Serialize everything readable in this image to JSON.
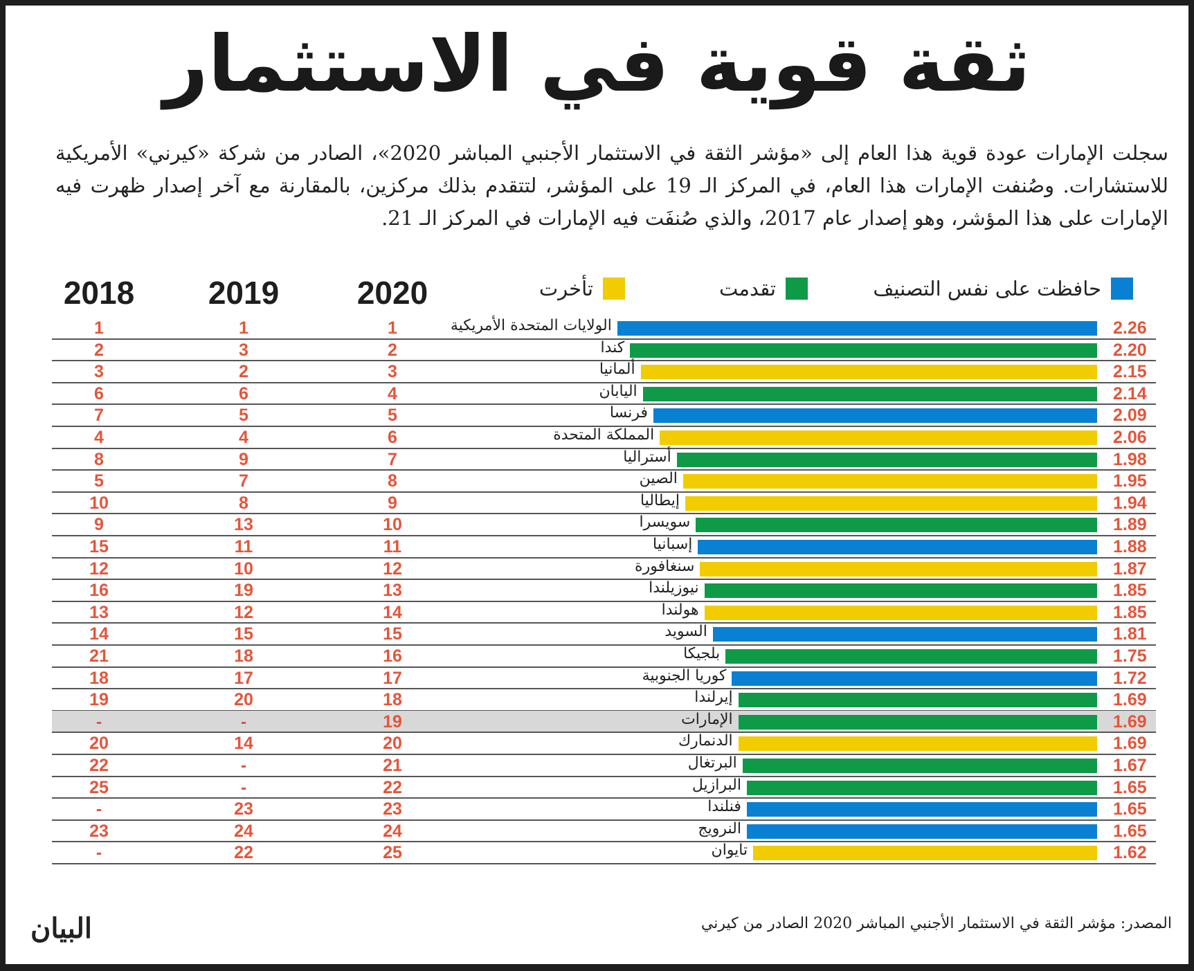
{
  "title": "ثقة قوية في الاستثمار",
  "intro": "سجلت الإمارات عودة قوية هذا العام إلى «مؤشر الثقة في الاستثمار الأجنبي المباشر 2020»، الصادر من شركة «كيرني» الأمريكية للاستشارات. وصُنفت الإمارات هذا العام، في المركز الـ 19 على المؤشر، لتتقدم بذلك مركزين، بالمقارنة مع آخر إصدار ظهرت فيه الإمارات على هذا المؤشر، وهو إصدار عام 2017، والذي صُنفَت فيه الإمارات في المركز الـ 21.",
  "source": "المصدر: مؤشر الثقة في الاستثمار الأجنبي المباشر 2020 الصادر من كيرني",
  "logo": "البيان",
  "colors": {
    "same": "#0a80d2",
    "up": "#0f9a47",
    "down": "#f1cc00",
    "rank": "#e4553a",
    "highlight": "#d8d8d8"
  },
  "chart_data": {
    "type": "bar",
    "title": "ثقة قوية في الاستثمار",
    "legend": {
      "same": "حافظت على نفس التصنيف",
      "up": "تقدمت",
      "down": "تأخرت"
    },
    "year_headers": [
      "2018",
      "2019",
      "2020"
    ],
    "rows": [
      {
        "country": "الولايات المتحدة الأمريكية",
        "value": "2.26",
        "status": "same",
        "r2020": "1",
        "r2019": "1",
        "r2018": "1"
      },
      {
        "country": "كندا",
        "value": "2.20",
        "status": "up",
        "r2020": "2",
        "r2019": "3",
        "r2018": "2"
      },
      {
        "country": "ألمانيا",
        "value": "2.15",
        "status": "down",
        "r2020": "3",
        "r2019": "2",
        "r2018": "3"
      },
      {
        "country": "اليابان",
        "value": "2.14",
        "status": "up",
        "r2020": "4",
        "r2019": "6",
        "r2018": "6"
      },
      {
        "country": "فرنسا",
        "value": "2.09",
        "status": "same",
        "r2020": "5",
        "r2019": "5",
        "r2018": "7"
      },
      {
        "country": "المملكة المتحدة",
        "value": "2.06",
        "status": "down",
        "r2020": "6",
        "r2019": "4",
        "r2018": "4"
      },
      {
        "country": "أستراليا",
        "value": "1.98",
        "status": "up",
        "r2020": "7",
        "r2019": "9",
        "r2018": "8"
      },
      {
        "country": "الصين",
        "value": "1.95",
        "status": "down",
        "r2020": "8",
        "r2019": "7",
        "r2018": "5"
      },
      {
        "country": "إيطاليا",
        "value": "1.94",
        "status": "down",
        "r2020": "9",
        "r2019": "8",
        "r2018": "10"
      },
      {
        "country": "سويسرا",
        "value": "1.89",
        "status": "up",
        "r2020": "10",
        "r2019": "13",
        "r2018": "9"
      },
      {
        "country": "إسبانيا",
        "value": "1.88",
        "status": "same",
        "r2020": "11",
        "r2019": "11",
        "r2018": "15"
      },
      {
        "country": "سنغافورة",
        "value": "1.87",
        "status": "down",
        "r2020": "12",
        "r2019": "10",
        "r2018": "12"
      },
      {
        "country": "نيوزيلندا",
        "value": "1.85",
        "status": "up",
        "r2020": "13",
        "r2019": "19",
        "r2018": "16"
      },
      {
        "country": "هولندا",
        "value": "1.85",
        "status": "down",
        "r2020": "14",
        "r2019": "12",
        "r2018": "13"
      },
      {
        "country": "السويد",
        "value": "1.81",
        "status": "same",
        "r2020": "15",
        "r2019": "15",
        "r2018": "14"
      },
      {
        "country": "بلجيكا",
        "value": "1.75",
        "status": "up",
        "r2020": "16",
        "r2019": "18",
        "r2018": "21"
      },
      {
        "country": "كوريا الجنوبية",
        "value": "1.72",
        "status": "same",
        "r2020": "17",
        "r2019": "17",
        "r2018": "18"
      },
      {
        "country": "إيرلندا",
        "value": "1.69",
        "status": "up",
        "r2020": "18",
        "r2019": "20",
        "r2018": "19"
      },
      {
        "country": "الإمارات",
        "value": "1.69",
        "status": "up",
        "r2020": "19",
        "r2019": "-",
        "r2018": "-",
        "highlight": true
      },
      {
        "country": "الدنمارك",
        "value": "1.69",
        "status": "down",
        "r2020": "20",
        "r2019": "14",
        "r2018": "20"
      },
      {
        "country": "البرتغال",
        "value": "1.67",
        "status": "up",
        "r2020": "21",
        "r2019": "-",
        "r2018": "22"
      },
      {
        "country": "البرازيل",
        "value": "1.65",
        "status": "up",
        "r2020": "22",
        "r2019": "-",
        "r2018": "25"
      },
      {
        "country": "فنلندا",
        "value": "1.65",
        "status": "same",
        "r2020": "23",
        "r2019": "23",
        "r2018": "-"
      },
      {
        "country": "النرويج",
        "value": "1.65",
        "status": "same",
        "r2020": "24",
        "r2019": "24",
        "r2018": "23"
      },
      {
        "country": "تايوان",
        "value": "1.62",
        "status": "down",
        "r2020": "25",
        "r2019": "22",
        "r2018": "-"
      }
    ]
  }
}
